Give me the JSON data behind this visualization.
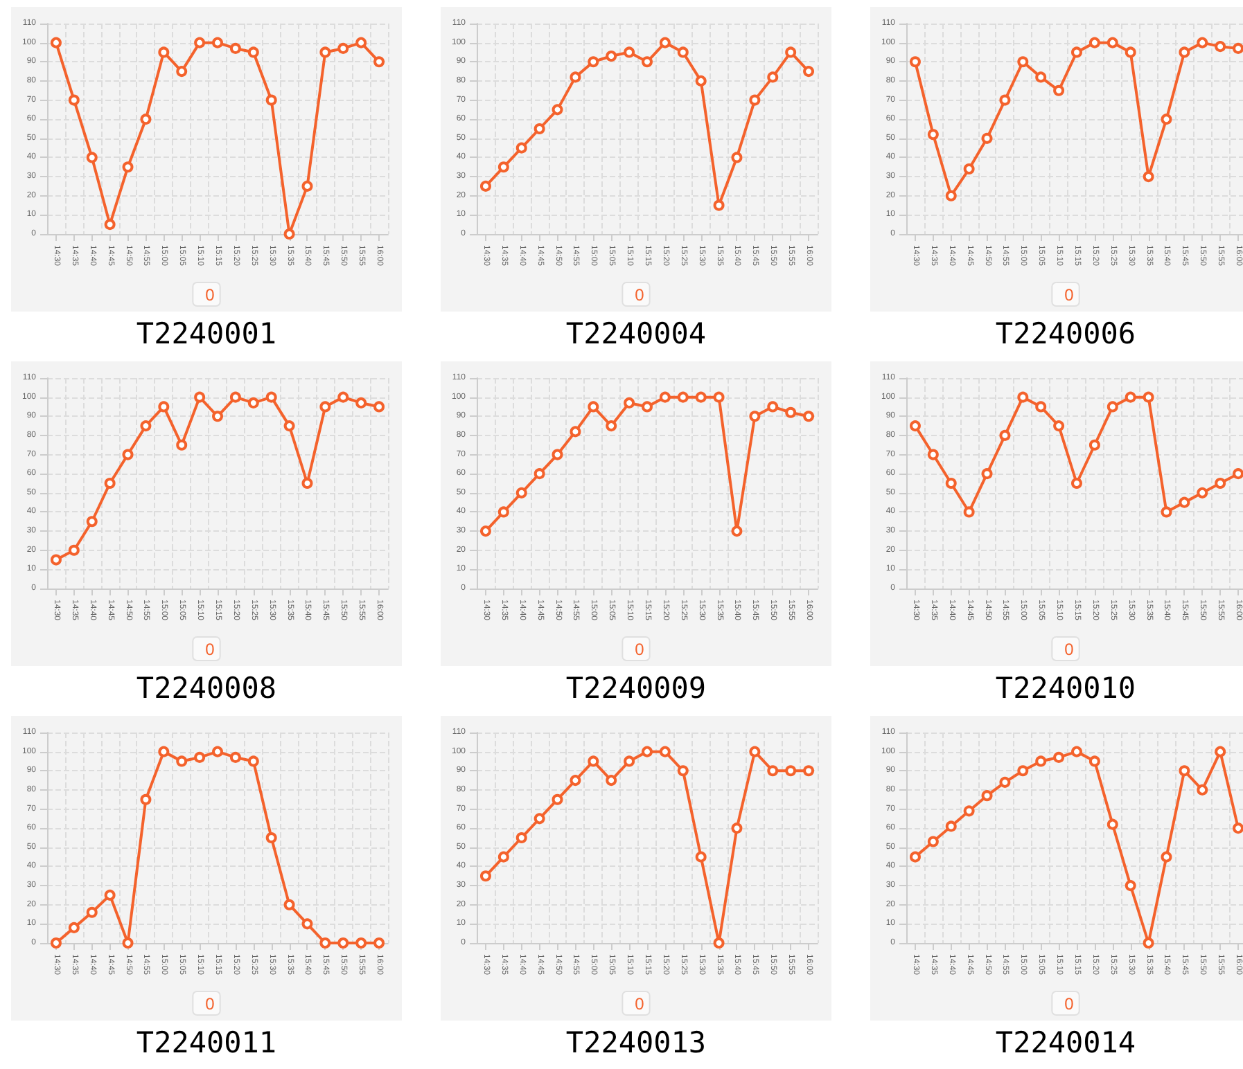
{
  "chart_data": [
    {
      "type": "line",
      "title": "T2240001",
      "categories": [
        "14:30",
        "14:35",
        "14:40",
        "14:45",
        "14:50",
        "14:55",
        "15:00",
        "15:05",
        "15:10",
        "15:15",
        "15:20",
        "15:25",
        "15:30",
        "15:35",
        "15:40",
        "15:45",
        "15:50",
        "15:55",
        "16:00"
      ],
      "series": [
        {
          "name": "0",
          "color": "#f4622c",
          "values": [
            100,
            70,
            40,
            5,
            35,
            60,
            95,
            85,
            100,
            100,
            97,
            95,
            70,
            0,
            25,
            95,
            97,
            100,
            90
          ]
        }
      ],
      "ylim": [
        0,
        110
      ],
      "yticks": [
        0,
        10,
        20,
        30,
        40,
        50,
        60,
        70,
        80,
        90,
        100,
        110
      ],
      "grid": true,
      "legend": "bottom",
      "marker": "circle"
    },
    {
      "type": "line",
      "title": "T2240004",
      "categories": [
        "14:30",
        "14:35",
        "14:40",
        "14:45",
        "14:50",
        "14:55",
        "15:00",
        "15:05",
        "15:10",
        "15:15",
        "15:20",
        "15:25",
        "15:30",
        "15:35",
        "15:40",
        "15:45",
        "15:50",
        "15:55",
        "16:00"
      ],
      "series": [
        {
          "name": "0",
          "color": "#f4622c",
          "values": [
            25,
            35,
            45,
            55,
            65,
            82,
            90,
            93,
            95,
            90,
            100,
            95,
            80,
            15,
            40,
            70,
            82,
            95,
            85
          ]
        }
      ],
      "ylim": [
        0,
        110
      ],
      "yticks": [
        0,
        10,
        20,
        30,
        40,
        50,
        60,
        70,
        80,
        90,
        100,
        110
      ],
      "grid": true,
      "legend": "bottom",
      "marker": "circle"
    },
    {
      "type": "line",
      "title": "T2240006",
      "categories": [
        "14:30",
        "14:35",
        "14:40",
        "14:45",
        "14:50",
        "14:55",
        "15:00",
        "15:05",
        "15:10",
        "15:15",
        "15:20",
        "15:25",
        "15:30",
        "15:35",
        "15:40",
        "15:45",
        "15:50",
        "15:55",
        "16:00"
      ],
      "series": [
        {
          "name": "0",
          "color": "#f4622c",
          "values": [
            90,
            52,
            20,
            34,
            50,
            70,
            90,
            82,
            75,
            95,
            100,
            100,
            95,
            30,
            60,
            95,
            100,
            98,
            97
          ]
        }
      ],
      "ylim": [
        0,
        110
      ],
      "yticks": [
        0,
        10,
        20,
        30,
        40,
        50,
        60,
        70,
        80,
        90,
        100,
        110
      ],
      "grid": true,
      "legend": "bottom",
      "marker": "circle"
    },
    {
      "type": "line",
      "title": "T2240008",
      "categories": [
        "14:30",
        "14:35",
        "14:40",
        "14:45",
        "14:50",
        "14:55",
        "15:00",
        "15:05",
        "15:10",
        "15:15",
        "15:20",
        "15:25",
        "15:30",
        "15:35",
        "15:40",
        "15:45",
        "15:50",
        "15:55",
        "16:00"
      ],
      "series": [
        {
          "name": "0",
          "color": "#f4622c",
          "values": [
            15,
            20,
            35,
            55,
            70,
            85,
            95,
            75,
            100,
            90,
            100,
            97,
            100,
            85,
            55,
            95,
            100,
            97,
            95
          ]
        }
      ],
      "ylim": [
        0,
        110
      ],
      "yticks": [
        0,
        10,
        20,
        30,
        40,
        50,
        60,
        70,
        80,
        90,
        100,
        110
      ],
      "grid": true,
      "legend": "bottom",
      "marker": "circle"
    },
    {
      "type": "line",
      "title": "T2240009",
      "categories": [
        "14:30",
        "14:35",
        "14:40",
        "14:45",
        "14:50",
        "14:55",
        "15:00",
        "15:05",
        "15:10",
        "15:15",
        "15:20",
        "15:25",
        "15:30",
        "15:35",
        "15:40",
        "15:45",
        "15:50",
        "15:55",
        "16:00"
      ],
      "series": [
        {
          "name": "0",
          "color": "#f4622c",
          "values": [
            30,
            40,
            50,
            60,
            70,
            82,
            95,
            85,
            97,
            95,
            100,
            100,
            100,
            100,
            30,
            90,
            95,
            92,
            90
          ]
        }
      ],
      "ylim": [
        0,
        110
      ],
      "yticks": [
        0,
        10,
        20,
        30,
        40,
        50,
        60,
        70,
        80,
        90,
        100,
        110
      ],
      "grid": true,
      "legend": "bottom",
      "marker": "circle"
    },
    {
      "type": "line",
      "title": "T2240010",
      "categories": [
        "14:30",
        "14:35",
        "14:40",
        "14:45",
        "14:50",
        "14:55",
        "15:00",
        "15:05",
        "15:10",
        "15:15",
        "15:20",
        "15:25",
        "15:30",
        "15:35",
        "15:40",
        "15:45",
        "15:50",
        "15:55",
        "16:00"
      ],
      "series": [
        {
          "name": "0",
          "color": "#f4622c",
          "values": [
            85,
            70,
            55,
            40,
            60,
            80,
            100,
            95,
            85,
            55,
            75,
            95,
            100,
            100,
            40,
            45,
            50,
            55,
            60
          ]
        }
      ],
      "ylim": [
        0,
        110
      ],
      "yticks": [
        0,
        10,
        20,
        30,
        40,
        50,
        60,
        70,
        80,
        90,
        100,
        110
      ],
      "grid": true,
      "legend": "bottom",
      "marker": "circle"
    },
    {
      "type": "line",
      "title": "T2240011",
      "categories": [
        "14:30",
        "14:35",
        "14:40",
        "14:45",
        "14:50",
        "14:55",
        "15:00",
        "15:05",
        "15:10",
        "15:15",
        "15:20",
        "15:25",
        "15:30",
        "15:35",
        "15:40",
        "15:45",
        "15:50",
        "15:55",
        "16:00"
      ],
      "series": [
        {
          "name": "0",
          "color": "#f4622c",
          "values": [
            0,
            8,
            16,
            25,
            0,
            75,
            100,
            95,
            97,
            100,
            97,
            95,
            55,
            20,
            10,
            0,
            0,
            0,
            0
          ]
        }
      ],
      "ylim": [
        0,
        110
      ],
      "yticks": [
        0,
        10,
        20,
        30,
        40,
        50,
        60,
        70,
        80,
        90,
        100,
        110
      ],
      "grid": true,
      "legend": "bottom",
      "marker": "circle"
    },
    {
      "type": "line",
      "title": "T2240013",
      "categories": [
        "14:30",
        "14:35",
        "14:40",
        "14:45",
        "14:50",
        "14:55",
        "15:00",
        "15:05",
        "15:10",
        "15:15",
        "15:20",
        "15:25",
        "15:30",
        "15:35",
        "15:40",
        "15:45",
        "15:50",
        "15:55",
        "16:00"
      ],
      "series": [
        {
          "name": "0",
          "color": "#f4622c",
          "values": [
            35,
            45,
            55,
            65,
            75,
            85,
            95,
            85,
            95,
            100,
            100,
            90,
            45,
            0,
            60,
            100,
            90,
            90,
            90
          ]
        }
      ],
      "ylim": [
        0,
        110
      ],
      "yticks": [
        0,
        10,
        20,
        30,
        40,
        50,
        60,
        70,
        80,
        90,
        100,
        110
      ],
      "grid": true,
      "legend": "bottom",
      "marker": "circle"
    },
    {
      "type": "line",
      "title": "T2240014",
      "categories": [
        "14:30",
        "14:35",
        "14:40",
        "14:45",
        "14:50",
        "14:55",
        "15:00",
        "15:05",
        "15:10",
        "15:15",
        "15:20",
        "15:25",
        "15:30",
        "15:35",
        "15:40",
        "15:45",
        "15:50",
        "15:55",
        "16:00"
      ],
      "series": [
        {
          "name": "0",
          "color": "#f4622c",
          "values": [
            45,
            53,
            61,
            69,
            77,
            84,
            90,
            95,
            97,
            100,
            95,
            62,
            30,
            0,
            45,
            90,
            80,
            100,
            60
          ]
        }
      ],
      "ylim": [
        0,
        110
      ],
      "yticks": [
        0,
        10,
        20,
        30,
        40,
        50,
        60,
        70,
        80,
        90,
        100,
        110
      ],
      "grid": true,
      "legend": "bottom",
      "marker": "circle"
    }
  ]
}
